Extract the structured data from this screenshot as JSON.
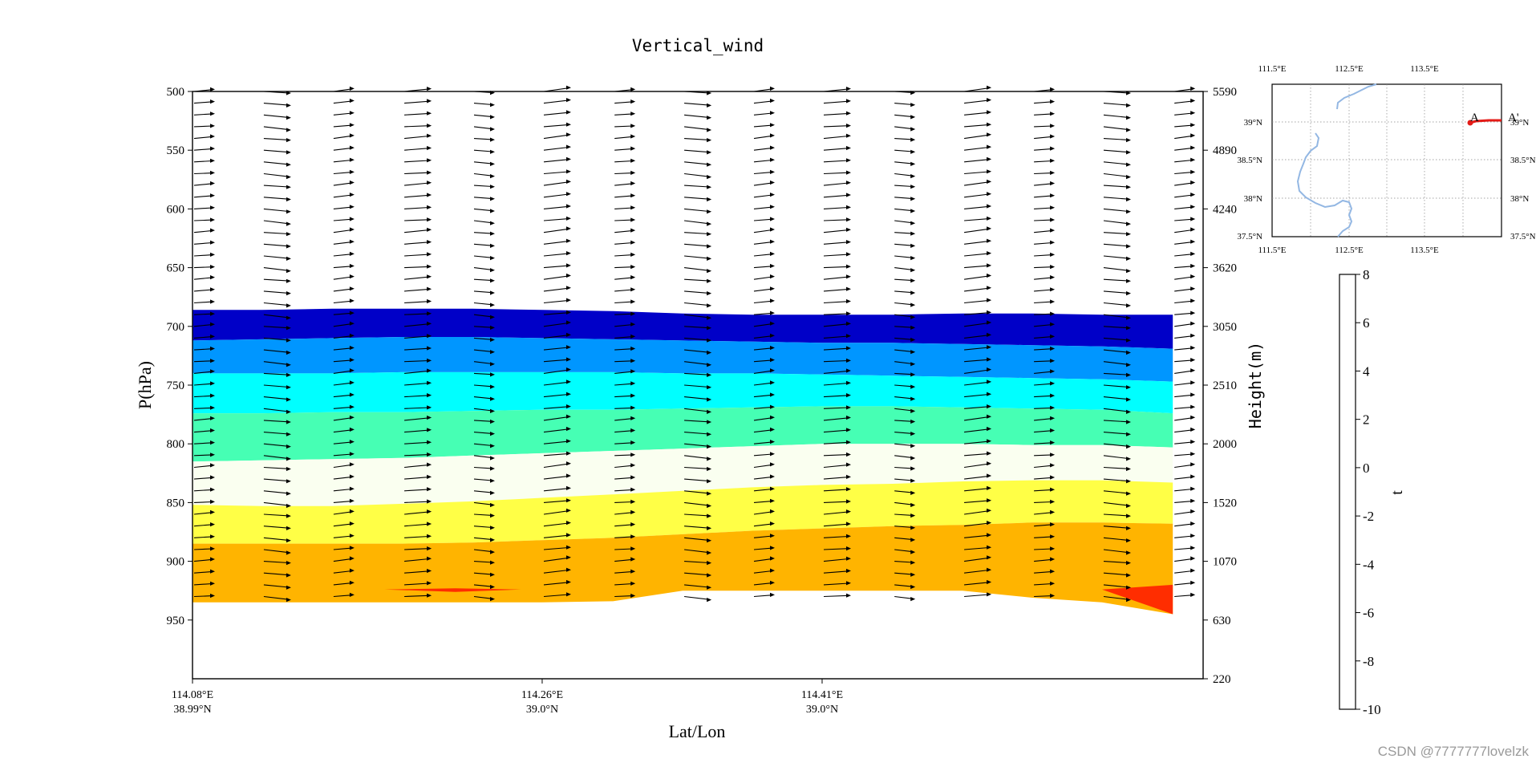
{
  "chart_data": [
    {
      "type": "filled-contour+quiver",
      "title": "Vertical_wind",
      "xlabel": "Lat/Lon",
      "ylabel": "P(hPa)",
      "y2label": "Height(m)",
      "ylim": [
        1000,
        500
      ],
      "yticks": [
        "500",
        "550",
        "600",
        "650",
        "700",
        "750",
        "800",
        "850",
        "900",
        "950"
      ],
      "y2ticks": [
        {
          "p": 500,
          "label": "5590"
        },
        {
          "p": 550,
          "label": "4890"
        },
        {
          "p": 600,
          "label": "4240"
        },
        {
          "p": 650,
          "label": "3620"
        },
        {
          "p": 700,
          "label": "3050"
        },
        {
          "p": 750,
          "label": "2510"
        },
        {
          "p": 800,
          "label": "2000"
        },
        {
          "p": 850,
          "label": "1520"
        },
        {
          "p": 900,
          "label": "1070"
        },
        {
          "p": 950,
          "label": "630"
        },
        {
          "p": 1000,
          "label": "220"
        }
      ],
      "xticks": [
        {
          "x": 0.0,
          "lon": "114.08°E",
          "lat": "38.99°N"
        },
        {
          "x": 0.346,
          "lon": "114.26°E",
          "lat": "39.0°N"
        },
        {
          "x": 0.623,
          "lon": "114.41°E",
          "lat": "39.0°N"
        }
      ],
      "x_extent": 0.97,
      "boundaries_x": [
        0.0,
        0.069,
        0.138,
        0.208,
        0.277,
        0.346,
        0.416,
        0.485,
        0.554,
        0.623,
        0.693,
        0.762,
        0.831,
        0.9,
        0.97
      ],
      "boundaries_hPa": {
        "-10": [
          686,
          686,
          685,
          685,
          685,
          686,
          687,
          689,
          690,
          690,
          690,
          689,
          689,
          690,
          690
        ],
        "-8": [
          712,
          711,
          710,
          709,
          709,
          710,
          711,
          712,
          713,
          714,
          714,
          715,
          716,
          717,
          719
        ],
        "-6": [
          740,
          740,
          740,
          739,
          739,
          739,
          739,
          740,
          740,
          741,
          742,
          743,
          744,
          745,
          747
        ],
        "-4": [
          774,
          774,
          773,
          773,
          772,
          771,
          771,
          770,
          769,
          768,
          768,
          769,
          770,
          771,
          774
        ],
        "-2": [
          815,
          814,
          813,
          812,
          810,
          808,
          806,
          804,
          802,
          800,
          800,
          800,
          801,
          801,
          803
        ],
        "0": [
          852,
          853,
          853,
          851,
          849,
          846,
          843,
          840,
          837,
          835,
          834,
          832,
          831,
          831,
          833
        ],
        "2": [
          885,
          885,
          885,
          885,
          884,
          882,
          880,
          877,
          874,
          872,
          870,
          869,
          867,
          867,
          868
        ],
        "4": [
          935,
          935,
          935,
          935,
          935,
          935,
          934,
          925,
          925,
          925,
          925,
          925,
          931,
          935,
          945
        ]
      },
      "red_patches": [
        {
          "level": 4,
          "polygon_x_hPa": [
            [
              0.19,
              924
            ],
            [
              0.26,
              923
            ],
            [
              0.325,
              924
            ],
            [
              0.26,
              926
            ]
          ]
        },
        {
          "level": 4,
          "polygon_x_hPa": [
            [
              0.9,
              924
            ],
            [
              0.97,
              920
            ],
            [
              0.97,
              945
            ]
          ]
        }
      ],
      "quiver": {
        "columns_x": [
          0.0,
          0.069,
          0.138,
          0.208,
          0.277,
          0.346,
          0.416,
          0.485,
          0.554,
          0.623,
          0.693,
          0.762,
          0.831,
          0.9,
          0.97
        ],
        "levels_hPa": [
          500,
          510,
          520,
          530,
          540,
          550,
          560,
          570,
          580,
          590,
          600,
          610,
          620,
          630,
          640,
          650,
          660,
          670,
          680,
          690,
          700,
          710,
          720,
          730,
          740,
          750,
          760,
          770,
          780,
          790,
          800,
          810,
          820,
          830,
          840,
          850,
          860,
          870,
          880,
          890,
          900,
          910,
          920,
          930
        ],
        "u": 10,
        "w_rows": [
          "-0.3",
          "0.4",
          "-1.2",
          "0.3"
        ]
      },
      "colorbar": {
        "label": "t",
        "ticks": [
          "8",
          "6",
          "4",
          "2",
          "0",
          "-2",
          "-4",
          "-6",
          "-8",
          "-10"
        ],
        "levels": [
          -10,
          -8,
          -6,
          -4,
          -2,
          0,
          2,
          4,
          6,
          8
        ],
        "colors": [
          "#0000c8",
          "#0096ff",
          "#00ffff",
          "#46ffb4",
          "#fafff0",
          "#ffff46",
          "#ffb400",
          "#ff2d00",
          "#c80082"
        ]
      }
    }
  ],
  "inset_map": {
    "top_ticks": [
      "111.5°E",
      "112.5°E",
      "113.5°E"
    ],
    "bottom_ticks": [
      "111.5°E",
      "112.5°E",
      "113.5°E"
    ],
    "left_ticks": [
      "39°N",
      "38.5°N",
      "38°N",
      "37.5°N"
    ],
    "right_ticks": [
      "39°N",
      "38.5°N",
      "38°N",
      "37.5°N"
    ],
    "point_a": "A",
    "point_b": "A'",
    "river_color": "#93b7e3",
    "line_color": "#e41b17"
  },
  "watermark": "CSDN @7777777lovelzk"
}
